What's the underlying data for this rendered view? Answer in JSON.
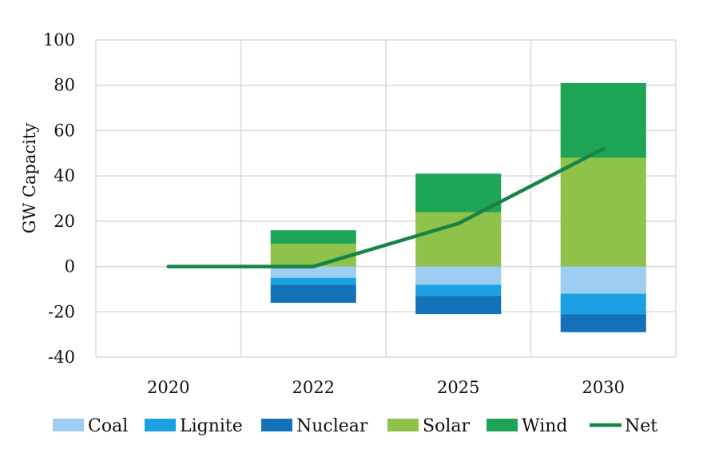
{
  "chart_data": {
    "type": "bar",
    "subtype": "stacked-bar-with-line",
    "title": "",
    "xlabel": "",
    "ylabel": "GW Capacity",
    "ylim": [
      -40,
      100
    ],
    "yticks": [
      100,
      80,
      60,
      40,
      20,
      0,
      -20,
      -40
    ],
    "grid": true,
    "legend_position": "bottom",
    "categories": [
      "2020",
      "2022",
      "2025",
      "2030"
    ],
    "series": [
      {
        "name": "Coal",
        "kind": "bar",
        "color": "#9dcdf1",
        "values": [
          0,
          -5,
          -8,
          -12
        ]
      },
      {
        "name": "Lignite",
        "kind": "bar",
        "color": "#1ba1e2",
        "values": [
          0,
          -3,
          -5,
          -9
        ]
      },
      {
        "name": "Nuclear",
        "kind": "bar",
        "color": "#1472ba",
        "values": [
          0,
          -8,
          -8,
          -8
        ]
      },
      {
        "name": "Solar",
        "kind": "bar",
        "color": "#8fc24a",
        "values": [
          0,
          10,
          24,
          48
        ]
      },
      {
        "name": "Wind",
        "kind": "bar",
        "color": "#1ea455",
        "values": [
          0,
          6,
          17,
          33
        ]
      },
      {
        "name": "Net",
        "kind": "line",
        "color": "#178346",
        "values": [
          0,
          0,
          19,
          52
        ]
      }
    ]
  }
}
